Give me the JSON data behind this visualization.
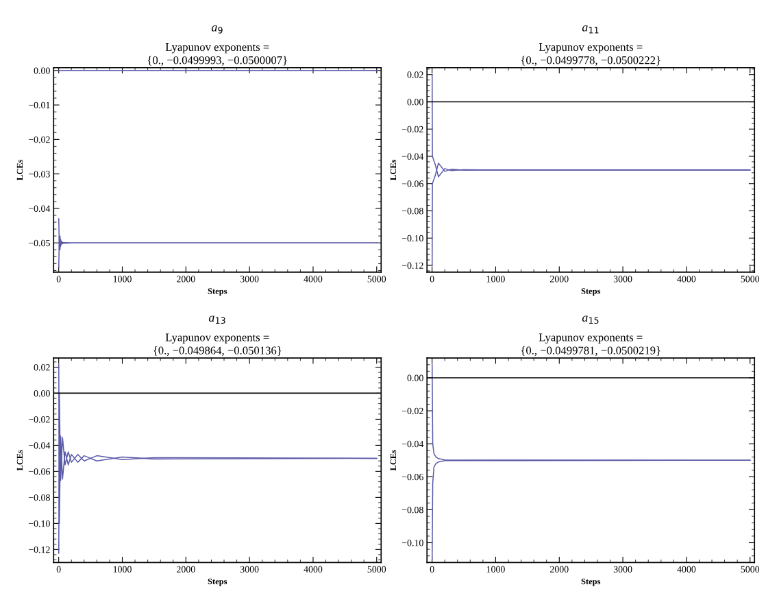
{
  "chart_data": [
    {
      "type": "line",
      "title": "a$_{9}$",
      "subtitle": "Lyapunov exponents =\n{0., −0.0499993, −0.0500007}",
      "xlabel": "Steps",
      "ylabel": "LCEs",
      "xlim": [
        -80,
        5070
      ],
      "xticks": [
        0,
        1000,
        2000,
        3000,
        4000,
        5000
      ],
      "ylim": [
        -0.0585,
        0.0008
      ],
      "yticks": [
        {
          "value": 0,
          "label": "0.00"
        },
        {
          "value": -0.01,
          "label": "−0.01"
        },
        {
          "value": -0.02,
          "label": "−0.02"
        },
        {
          "value": -0.03,
          "label": "−0.03"
        },
        {
          "value": -0.04,
          "label": "−0.04"
        },
        {
          "value": -0.05,
          "label": "−0.05"
        }
      ],
      "series": [
        {
          "color": "#5a5aa8",
          "x": [
            0,
            5000
          ],
          "values": [
            0,
            0
          ]
        },
        {
          "color": "#5a5aa8",
          "x": [
            1,
            10,
            20,
            30,
            40,
            60,
            100,
            200,
            5000
          ],
          "values": [
            -0.043,
            -0.052,
            -0.048,
            -0.051,
            -0.0495,
            -0.0502,
            -0.0499,
            -0.05,
            -0.05
          ]
        },
        {
          "color": "#5a5aa8",
          "x": [
            1,
            10,
            20,
            30,
            40,
            60,
            100,
            200,
            5000
          ],
          "values": [
            -0.057,
            -0.048,
            -0.052,
            -0.049,
            -0.0505,
            -0.0498,
            -0.0501,
            -0.05,
            -0.05
          ]
        }
      ]
    },
    {
      "type": "line",
      "title": "a$_{11}$",
      "subtitle": "Lyapunov exponents =\n{0., −0.0499778, −0.0500222}",
      "xlabel": "Steps",
      "ylabel": "LCEs",
      "xlim": [
        -80,
        5070
      ],
      "xticks": [
        0,
        1000,
        2000,
        3000,
        4000,
        5000
      ],
      "ylim": [
        -0.125,
        0.025
      ],
      "yticks": [
        {
          "value": 0.02,
          "label": "0.02"
        },
        {
          "value": 0,
          "label": "0.00"
        },
        {
          "value": -0.02,
          "label": "−0.02"
        },
        {
          "value": -0.04,
          "label": "−0.04"
        },
        {
          "value": -0.06,
          "label": "−0.06"
        },
        {
          "value": -0.08,
          "label": "−0.08"
        },
        {
          "value": -0.1,
          "label": "−0.10"
        },
        {
          "value": -0.12,
          "label": "−0.12"
        }
      ],
      "ref_lines": [
        {
          "axis": "y",
          "value": 0,
          "color": "#000000"
        }
      ],
      "series": [
        {
          "color": "#5a5aa8",
          "x": [
            1,
            5,
            20,
            50,
            100,
            200,
            300,
            500,
            800,
            5000
          ],
          "values": [
            0.02,
            -0.04,
            -0.042,
            -0.046,
            -0.055,
            -0.049,
            -0.0505,
            -0.0498,
            -0.05,
            -0.05
          ]
        },
        {
          "color": "#5a5aa8",
          "x": [
            1,
            5,
            20,
            50,
            100,
            200,
            300,
            500,
            800,
            5000
          ],
          "values": [
            -0.12,
            -0.06,
            -0.058,
            -0.054,
            -0.045,
            -0.051,
            -0.0495,
            -0.0502,
            -0.05,
            -0.05
          ]
        }
      ]
    },
    {
      "type": "line",
      "title": "a$_{13}$",
      "subtitle": "Lyapunov exponents =\n{0., −0.049864, −0.050136}",
      "xlabel": "Steps",
      "ylabel": "LCEs",
      "xlim": [
        -80,
        5070
      ],
      "xticks": [
        0,
        1000,
        2000,
        3000,
        4000,
        5000
      ],
      "ylim": [
        -0.13,
        0.027
      ],
      "yticks": [
        {
          "value": 0.02,
          "label": "0.02"
        },
        {
          "value": 0,
          "label": "0.00"
        },
        {
          "value": -0.02,
          "label": "−0.02"
        },
        {
          "value": -0.04,
          "label": "−0.04"
        },
        {
          "value": -0.06,
          "label": "−0.06"
        },
        {
          "value": -0.08,
          "label": "−0.08"
        },
        {
          "value": -0.1,
          "label": "−0.10"
        },
        {
          "value": -0.12,
          "label": "−0.12"
        }
      ],
      "ref_lines": [
        {
          "axis": "y",
          "value": 0,
          "color": "#000000"
        }
      ],
      "series": [
        {
          "color": "#5a5aa8",
          "x": [
            1,
            10,
            30,
            60,
            100,
            150,
            200,
            300,
            400,
            600,
            1000,
            1500,
            5000
          ],
          "values": [
            0.022,
            -0.1,
            -0.033,
            -0.066,
            -0.045,
            -0.055,
            -0.047,
            -0.053,
            -0.048,
            -0.052,
            -0.049,
            -0.0505,
            -0.05
          ]
        },
        {
          "color": "#5a5aa8",
          "x": [
            1,
            10,
            30,
            60,
            100,
            150,
            200,
            300,
            400,
            600,
            1000,
            1500,
            5000
          ],
          "values": [
            -0.123,
            0.0,
            -0.067,
            -0.034,
            -0.055,
            -0.045,
            -0.053,
            -0.047,
            -0.052,
            -0.048,
            -0.051,
            -0.0495,
            -0.05
          ]
        }
      ]
    },
    {
      "type": "line",
      "title": "a$_{15}$",
      "subtitle": "Lyapunov exponents =\n{0., −0.0499781, −0.0500219}",
      "xlabel": "Steps",
      "ylabel": "LCEs",
      "xlim": [
        -80,
        5070
      ],
      "xticks": [
        0,
        1000,
        2000,
        3000,
        4000,
        5000
      ],
      "ylim": [
        -0.112,
        0.012
      ],
      "yticks": [
        {
          "value": 0,
          "label": "0.00"
        },
        {
          "value": -0.02,
          "label": "−0.02"
        },
        {
          "value": -0.04,
          "label": "−0.04"
        },
        {
          "value": -0.06,
          "label": "−0.06"
        },
        {
          "value": -0.08,
          "label": "−0.08"
        },
        {
          "value": -0.1,
          "label": "−0.10"
        }
      ],
      "ref_lines": [
        {
          "axis": "y",
          "value": 0,
          "color": "#000000"
        }
      ],
      "series": [
        {
          "color": "#5a5aa8",
          "x": [
            1,
            10,
            30,
            60,
            100,
            200,
            5000
          ],
          "values": [
            0.008,
            -0.04,
            -0.046,
            -0.048,
            -0.049,
            -0.0498,
            -0.05
          ]
        },
        {
          "color": "#5a5aa8",
          "x": [
            1,
            10,
            30,
            60,
            100,
            200,
            5000
          ],
          "values": [
            -0.11,
            -0.064,
            -0.054,
            -0.052,
            -0.051,
            -0.0502,
            -0.05
          ]
        }
      ]
    }
  ]
}
